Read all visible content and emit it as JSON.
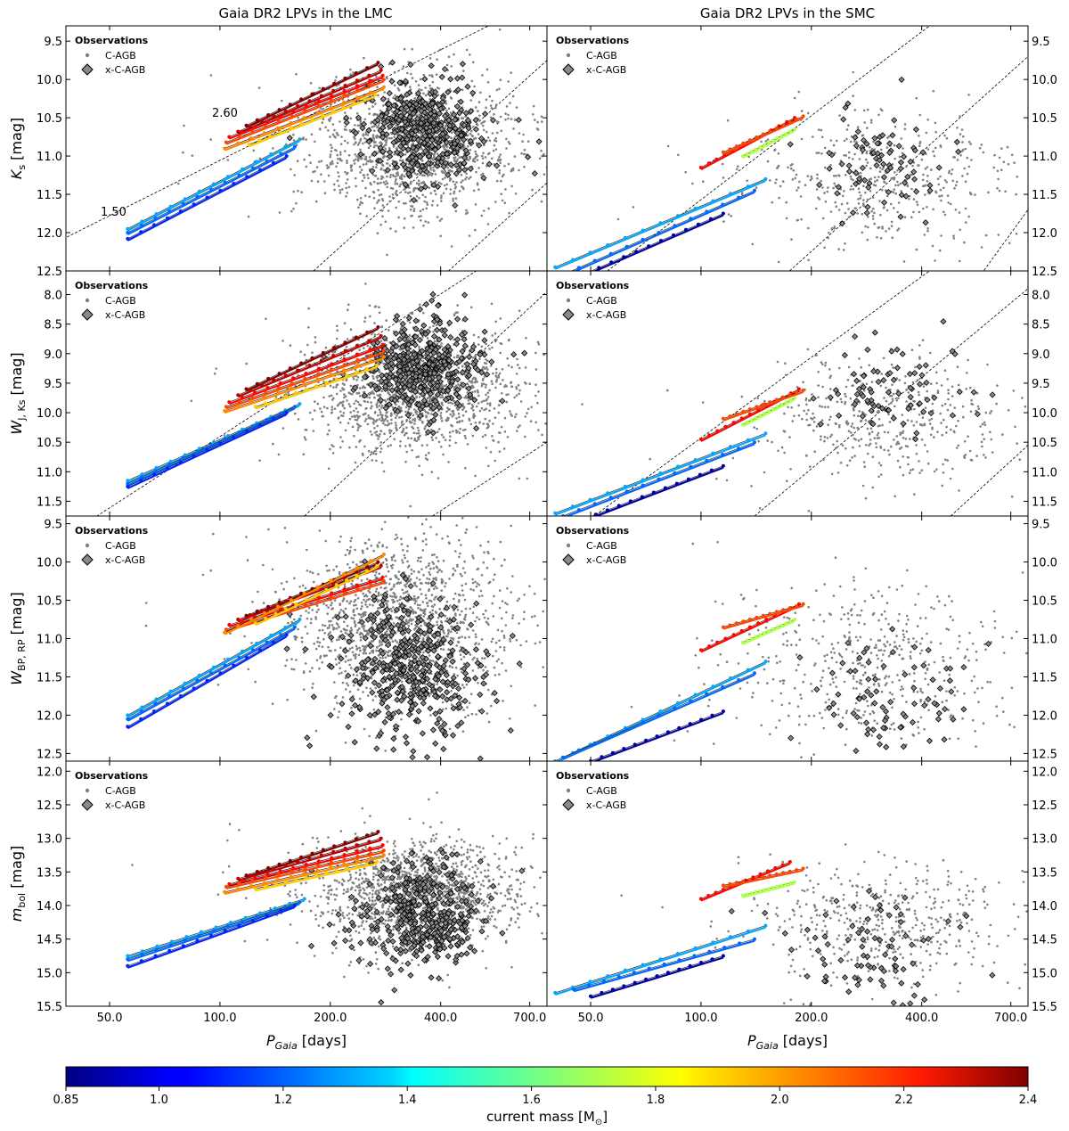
{
  "titles": {
    "left": "Gaia DR2 LPVs in the LMC",
    "right": "Gaia DR2 LPVs in the SMC"
  },
  "legend": {
    "title": "Observations",
    "c_agb": "C-AGB",
    "x_c_agb": "x-C-AGB"
  },
  "xaxis": {
    "label": "P",
    "label_sub": "Gaia",
    "label_unit": " [days]",
    "scale": "log",
    "lim": [
      38,
      780
    ],
    "ticks": [
      50,
      100,
      200,
      400,
      700
    ],
    "tick_labels": [
      "50.0",
      "100.0",
      "200.0",
      "400.0",
      "700.0"
    ]
  },
  "annotations": {
    "mass_high": "2.60",
    "mass_low": "1.50"
  },
  "colorbar": {
    "label": "current mass [M",
    "label_sun": "⊙",
    "label_end": "]",
    "min": 0.85,
    "max": 2.4,
    "ticks": [
      0.85,
      1.0,
      1.2,
      1.4,
      1.6,
      1.8,
      2.0,
      2.2,
      2.4
    ],
    "tick_labels": [
      "0.85",
      "1.0",
      "1.2",
      "1.4",
      "1.6",
      "1.8",
      "2.0",
      "2.2",
      "2.4"
    ],
    "colormap": "jet"
  },
  "colors": {
    "c_agb": "#808080",
    "x_c_agb_face": "#8a8a8a",
    "x_c_agb_edge": "#000000",
    "guide_line": "#000000"
  },
  "chart_data": [
    {
      "type": "scatter",
      "galaxy": "LMC",
      "band": "Ks",
      "ylabel": "K",
      "ylabel_sub": "s",
      "ylabel_unit": " [mag]",
      "ylim": [
        12.5,
        9.3
      ],
      "yticks": [
        9.5,
        10.0,
        10.5,
        11.0,
        11.5,
        12.0,
        12.5
      ],
      "ytick_labels": [
        "9.5",
        "10.0",
        "10.5",
        "11.0",
        "11.5",
        "12.0",
        "12.5"
      ],
      "c_agb_cloud": {
        "n": 1500,
        "logP_mean": 2.53,
        "logP_sd": 0.13,
        "mag_mean": 10.85,
        "mag_sd": 0.45
      },
      "x_c_agb_cloud": {
        "n": 420,
        "logP_mean": 2.55,
        "logP_sd": 0.07,
        "mag_mean": 10.65,
        "mag_sd": 0.32
      },
      "guide_lines": [
        [
          [
            25,
            12.5
          ],
          [
            540,
            9.3
          ]
        ],
        [
          [
            180,
            12.5
          ],
          [
            780,
            9.75
          ]
        ],
        [
          [
            420,
            12.5
          ],
          [
            780,
            11.35
          ]
        ]
      ],
      "tracks": [
        {
          "mass": 2.4,
          "P": [
            118,
            270
          ],
          "mag": [
            10.6,
            9.78
          ]
        },
        {
          "mass": 2.3,
          "P": [
            112,
            275
          ],
          "mag": [
            10.68,
            9.88
          ]
        },
        {
          "mass": 2.2,
          "P": [
            106,
            278
          ],
          "mag": [
            10.75,
            9.95
          ]
        },
        {
          "mass": 2.1,
          "P": [
            104,
            280
          ],
          "mag": [
            10.82,
            10.0
          ]
        },
        {
          "mass": 2.0,
          "P": [
            103,
            280
          ],
          "mag": [
            10.9,
            10.1
          ]
        },
        {
          "mass": 1.9,
          "P": [
            120,
            265
          ],
          "mag": [
            10.85,
            10.2
          ]
        },
        {
          "mass": 1.3,
          "P": [
            56,
            165
          ],
          "mag": [
            11.95,
            10.78
          ]
        },
        {
          "mass": 1.2,
          "P": [
            56,
            160
          ],
          "mag": [
            12.0,
            10.88
          ]
        },
        {
          "mass": 1.1,
          "P": [
            56,
            152
          ],
          "mag": [
            12.08,
            11.0
          ]
        }
      ]
    },
    {
      "type": "scatter",
      "galaxy": "SMC",
      "band": "Ks",
      "ylim": [
        12.5,
        9.3
      ],
      "yticks": [
        9.5,
        10.0,
        10.5,
        11.0,
        11.5,
        12.0,
        12.5
      ],
      "ytick_labels": [
        "9.5",
        "10.0",
        "10.5",
        "11.0",
        "11.5",
        "12.0",
        "12.5"
      ],
      "c_agb_cloud": {
        "n": 480,
        "logP_mean": 2.5,
        "logP_sd": 0.17,
        "mag_mean": 11.3,
        "mag_sd": 0.45
      },
      "x_c_agb_cloud": {
        "n": 80,
        "logP_mean": 2.49,
        "logP_sd": 0.08,
        "mag_mean": 11.1,
        "mag_sd": 0.38
      },
      "guide_lines": [
        [
          [
            38,
            13.1
          ],
          [
            420,
            9.3
          ]
        ],
        [
          [
            120,
            13.2
          ],
          [
            780,
            9.7
          ]
        ],
        [
          [
            350,
            14.0
          ],
          [
            780,
            11.7
          ]
        ]
      ],
      "tracks": [
        {
          "mass": 2.2,
          "P": [
            100,
            180
          ],
          "mag": [
            11.15,
            10.5
          ]
        },
        {
          "mass": 2.1,
          "P": [
            115,
            190
          ],
          "mag": [
            10.95,
            10.48
          ]
        },
        {
          "mass": 1.7,
          "P": [
            130,
            180
          ],
          "mag": [
            11.0,
            10.65
          ]
        },
        {
          "mass": 1.3,
          "P": [
            40,
            150
          ],
          "mag": [
            12.45,
            11.3
          ]
        },
        {
          "mass": 1.2,
          "P": [
            42,
            140
          ],
          "mag": [
            12.55,
            11.45
          ]
        },
        {
          "mass": 0.9,
          "P": [
            45,
            115
          ],
          "mag": [
            12.6,
            11.75
          ]
        }
      ]
    },
    {
      "type": "scatter",
      "galaxy": "LMC",
      "band": "WJK",
      "ylabel": "W",
      "ylabel_sub": "J, Ks",
      "ylabel_unit": " [mag]",
      "ylim": [
        11.75,
        7.6
      ],
      "yticks": [
        8.0,
        8.5,
        9.0,
        9.5,
        10.0,
        10.5,
        11.0,
        11.5
      ],
      "ytick_labels": [
        "8.0",
        "8.5",
        "9.0",
        "9.5",
        "10.0",
        "10.5",
        "11.0",
        "11.5"
      ],
      "c_agb_cloud": {
        "n": 1500,
        "logP_mean": 2.53,
        "logP_sd": 0.13,
        "mag_mean": 9.6,
        "mag_sd": 0.55
      },
      "x_c_agb_cloud": {
        "n": 420,
        "logP_mean": 2.55,
        "logP_sd": 0.07,
        "mag_mean": 9.2,
        "mag_sd": 0.42
      },
      "guide_lines": [
        [
          [
            40,
            12.0
          ],
          [
            500,
            7.6
          ]
        ],
        [
          [
            170,
            11.75
          ],
          [
            780,
            7.95
          ]
        ],
        [
          [
            380,
            11.75
          ],
          [
            780,
            10.5
          ]
        ]
      ],
      "tracks": [
        {
          "mass": 2.4,
          "P": [
            118,
            270
          ],
          "mag": [
            9.6,
            8.55
          ]
        },
        {
          "mass": 2.3,
          "P": [
            112,
            275
          ],
          "mag": [
            9.7,
            8.7
          ]
        },
        {
          "mass": 2.2,
          "P": [
            106,
            278
          ],
          "mag": [
            9.82,
            8.85
          ]
        },
        {
          "mass": 2.1,
          "P": [
            104,
            280
          ],
          "mag": [
            9.9,
            8.95
          ]
        },
        {
          "mass": 2.0,
          "P": [
            103,
            280
          ],
          "mag": [
            9.97,
            9.05
          ]
        },
        {
          "mass": 1.9,
          "P": [
            125,
            268
          ],
          "mag": [
            9.9,
            9.2
          ]
        },
        {
          "mass": 1.3,
          "P": [
            56,
            165
          ],
          "mag": [
            11.15,
            9.85
          ]
        },
        {
          "mass": 1.2,
          "P": [
            56,
            160
          ],
          "mag": [
            11.2,
            9.9
          ]
        },
        {
          "mass": 1.1,
          "P": [
            56,
            152
          ],
          "mag": [
            11.25,
            10.0
          ]
        }
      ]
    },
    {
      "type": "scatter",
      "galaxy": "SMC",
      "band": "WJK",
      "ylim": [
        11.75,
        7.6
      ],
      "yticks": [
        8.0,
        8.5,
        9.0,
        9.5,
        10.0,
        10.5,
        11.0,
        11.5
      ],
      "ytick_labels": [
        "8.0",
        "8.5",
        "9.0",
        "9.5",
        "10.0",
        "10.5",
        "11.0",
        "11.5"
      ],
      "c_agb_cloud": {
        "n": 480,
        "logP_mean": 2.5,
        "logP_sd": 0.17,
        "mag_mean": 10.15,
        "mag_sd": 0.55
      },
      "x_c_agb_cloud": {
        "n": 80,
        "logP_mean": 2.5,
        "logP_sd": 0.08,
        "mag_mean": 9.6,
        "mag_sd": 0.4
      },
      "guide_lines": [
        [
          [
            45,
            12.0
          ],
          [
            420,
            7.6
          ]
        ],
        [
          [
            140,
            11.75
          ],
          [
            780,
            7.9
          ]
        ],
        [
          [
            480,
            11.75
          ],
          [
            780,
            10.55
          ]
        ]
      ],
      "tracks": [
        {
          "mass": 2.2,
          "P": [
            100,
            185
          ],
          "mag": [
            10.45,
            9.6
          ]
        },
        {
          "mass": 2.1,
          "P": [
            115,
            190
          ],
          "mag": [
            10.1,
            9.62
          ]
        },
        {
          "mass": 1.7,
          "P": [
            130,
            180
          ],
          "mag": [
            10.2,
            9.75
          ]
        },
        {
          "mass": 1.3,
          "P": [
            40,
            150
          ],
          "mag": [
            11.7,
            10.35
          ]
        },
        {
          "mass": 1.2,
          "P": [
            42,
            140
          ],
          "mag": [
            11.75,
            10.5
          ]
        },
        {
          "mass": 0.9,
          "P": [
            48,
            115
          ],
          "mag": [
            11.8,
            10.9
          ]
        }
      ]
    },
    {
      "type": "scatter",
      "galaxy": "LMC",
      "band": "WBPRP",
      "ylabel": "W",
      "ylabel_sub": "BP, RP",
      "ylabel_unit": " [mag]",
      "ylim": [
        12.6,
        9.4
      ],
      "yticks": [
        9.5,
        10.0,
        10.5,
        11.0,
        11.5,
        12.0,
        12.5
      ],
      "ytick_labels": [
        "9.5",
        "10.0",
        "10.5",
        "11.0",
        "11.5",
        "12.0",
        "12.5"
      ],
      "c_agb_cloud": {
        "n": 1500,
        "logP_mean": 2.5,
        "logP_sd": 0.14,
        "mag_mean": 10.8,
        "mag_sd": 0.55
      },
      "x_c_agb_cloud": {
        "n": 420,
        "logP_mean": 2.52,
        "logP_sd": 0.08,
        "mag_mean": 11.45,
        "mag_sd": 0.45
      },
      "guide_lines": [],
      "tracks": [
        {
          "mass": 2.4,
          "P": [
            118,
            270
          ],
          "mag": [
            10.7,
            10.0
          ]
        },
        {
          "mass": 2.3,
          "P": [
            112,
            275
          ],
          "mag": [
            10.75,
            10.05
          ]
        },
        {
          "mass": 2.2,
          "P": [
            106,
            278
          ],
          "mag": [
            10.82,
            10.2
          ]
        },
        {
          "mass": 2.1,
          "P": [
            104,
            280
          ],
          "mag": [
            10.88,
            10.25
          ]
        },
        {
          "mass": 2.0,
          "P": [
            103,
            280
          ],
          "mag": [
            10.92,
            9.9
          ]
        },
        {
          "mass": 1.9,
          "P": [
            125,
            268
          ],
          "mag": [
            10.8,
            10.05
          ]
        },
        {
          "mass": 1.3,
          "P": [
            56,
            165
          ],
          "mag": [
            12.0,
            10.75
          ]
        },
        {
          "mass": 1.2,
          "P": [
            56,
            160
          ],
          "mag": [
            12.05,
            10.85
          ]
        },
        {
          "mass": 1.1,
          "P": [
            56,
            152
          ],
          "mag": [
            12.15,
            10.95
          ]
        }
      ]
    },
    {
      "type": "scatter",
      "galaxy": "SMC",
      "band": "WBPRP",
      "ylim": [
        12.6,
        9.4
      ],
      "yticks": [
        9.5,
        10.0,
        10.5,
        11.0,
        11.5,
        12.0,
        12.5
      ],
      "ytick_labels": [
        "9.5",
        "10.0",
        "10.5",
        "11.0",
        "11.5",
        "12.0",
        "12.5"
      ],
      "c_agb_cloud": {
        "n": 480,
        "logP_mean": 2.45,
        "logP_sd": 0.17,
        "mag_mean": 11.35,
        "mag_sd": 0.55
      },
      "x_c_agb_cloud": {
        "n": 80,
        "logP_mean": 2.5,
        "logP_sd": 0.1,
        "mag_mean": 11.85,
        "mag_sd": 0.4
      },
      "guide_lines": [],
      "tracks": [
        {
          "mass": 2.2,
          "P": [
            100,
            185
          ],
          "mag": [
            11.15,
            10.55
          ]
        },
        {
          "mass": 2.1,
          "P": [
            115,
            190
          ],
          "mag": [
            10.85,
            10.55
          ]
        },
        {
          "mass": 1.7,
          "P": [
            130,
            180
          ],
          "mag": [
            11.05,
            10.75
          ]
        },
        {
          "mass": 1.3,
          "P": [
            40,
            150
          ],
          "mag": [
            12.6,
            11.3
          ]
        },
        {
          "mass": 1.2,
          "P": [
            42,
            140
          ],
          "mag": [
            12.55,
            11.45
          ]
        },
        {
          "mass": 0.9,
          "P": [
            50,
            115
          ],
          "mag": [
            12.6,
            11.95
          ]
        }
      ]
    },
    {
      "type": "scatter",
      "galaxy": "LMC",
      "band": "mbol",
      "ylabel": "m",
      "ylabel_sub": "bol",
      "ylabel_unit": " [mag]",
      "ylim": [
        15.5,
        11.85
      ],
      "yticks": [
        12.0,
        12.5,
        13.0,
        13.5,
        14.0,
        14.5,
        15.0,
        15.5
      ],
      "ytick_labels": [
        "12.0",
        "12.5",
        "13.0",
        "13.5",
        "14.0",
        "14.5",
        "15.0",
        "15.5"
      ],
      "c_agb_cloud": {
        "n": 1500,
        "logP_mean": 2.53,
        "logP_sd": 0.13,
        "mag_mean": 13.8,
        "mag_sd": 0.4
      },
      "x_c_agb_cloud": {
        "n": 420,
        "logP_mean": 2.55,
        "logP_sd": 0.07,
        "mag_mean": 14.15,
        "mag_sd": 0.4
      },
      "guide_lines": [],
      "tracks": [
        {
          "mass": 2.4,
          "P": [
            118,
            270
          ],
          "mag": [
            13.55,
            12.9
          ]
        },
        {
          "mass": 2.3,
          "P": [
            112,
            275
          ],
          "mag": [
            13.6,
            13.0
          ]
        },
        {
          "mass": 2.2,
          "P": [
            106,
            278
          ],
          "mag": [
            13.68,
            13.1
          ]
        },
        {
          "mass": 2.1,
          "P": [
            104,
            280
          ],
          "mag": [
            13.72,
            13.18
          ]
        },
        {
          "mass": 2.0,
          "P": [
            103,
            280
          ],
          "mag": [
            13.8,
            13.25
          ]
        },
        {
          "mass": 1.9,
          "P": [
            125,
            268
          ],
          "mag": [
            13.75,
            13.35
          ]
        },
        {
          "mass": 1.3,
          "P": [
            56,
            170
          ],
          "mag": [
            14.75,
            13.9
          ]
        },
        {
          "mass": 1.2,
          "P": [
            56,
            165
          ],
          "mag": [
            14.8,
            13.95
          ]
        },
        {
          "mass": 1.1,
          "P": [
            56,
            160
          ],
          "mag": [
            14.9,
            14.0
          ]
        }
      ]
    },
    {
      "type": "scatter",
      "galaxy": "SMC",
      "band": "mbol",
      "ylim": [
        15.5,
        11.85
      ],
      "yticks": [
        12.0,
        12.5,
        13.0,
        13.5,
        14.0,
        14.5,
        15.0,
        15.5
      ],
      "ytick_labels": [
        "12.0",
        "12.5",
        "13.0",
        "13.5",
        "14.0",
        "14.5",
        "15.0",
        "15.5"
      ],
      "c_agb_cloud": {
        "n": 480,
        "logP_mean": 2.5,
        "logP_sd": 0.17,
        "mag_mean": 14.25,
        "mag_sd": 0.45
      },
      "x_c_agb_cloud": {
        "n": 80,
        "logP_mean": 2.47,
        "logP_sd": 0.09,
        "mag_mean": 14.65,
        "mag_sd": 0.4
      },
      "guide_lines": [],
      "tracks": [
        {
          "mass": 2.2,
          "P": [
            100,
            175
          ],
          "mag": [
            13.9,
            13.35
          ]
        },
        {
          "mass": 2.1,
          "P": [
            115,
            190
          ],
          "mag": [
            13.7,
            13.45
          ]
        },
        {
          "mass": 1.7,
          "P": [
            130,
            180
          ],
          "mag": [
            13.85,
            13.65
          ]
        },
        {
          "mass": 1.3,
          "P": [
            40,
            150
          ],
          "mag": [
            15.3,
            14.3
          ]
        },
        {
          "mass": 1.2,
          "P": [
            45,
            140
          ],
          "mag": [
            15.25,
            14.5
          ]
        },
        {
          "mass": 0.9,
          "P": [
            50,
            115
          ],
          "mag": [
            15.35,
            14.75
          ]
        }
      ]
    }
  ]
}
